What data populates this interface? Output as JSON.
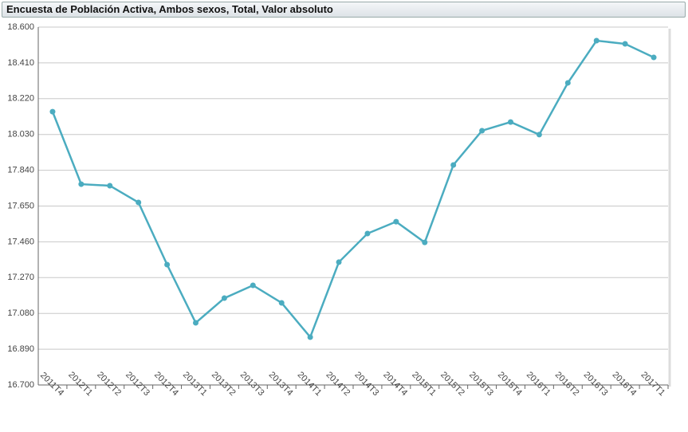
{
  "chart_data": {
    "type": "line",
    "title": "Encuesta de Población Activa, Ambos sexos, Total, Valor absoluto",
    "categories": [
      "2011T4",
      "2012T1",
      "2012T2",
      "2012T3",
      "2012T4",
      "2013T1",
      "2013T2",
      "2013T3",
      "2013T4",
      "2014T1",
      "2014T2",
      "2014T3",
      "2014T4",
      "2015T1",
      "2015T2",
      "2015T3",
      "2015T4",
      "2016T1",
      "2016T2",
      "2016T3",
      "2016T4",
      "2017T1"
    ],
    "series": [
      {
        "color": "#4bacc0",
        "values": [
          18151,
          17766,
          17758,
          17669,
          17339,
          17030,
          17161,
          17229,
          17136,
          16954,
          17352,
          17504,
          17567,
          17457,
          17868,
          18050,
          18096,
          18029,
          18304,
          18528,
          18511,
          18439
        ]
      }
    ],
    "ylim": [
      16700,
      18600
    ],
    "yticks": [
      {
        "value": 16700,
        "label": "16.700"
      },
      {
        "value": 16890,
        "label": "16.890"
      },
      {
        "value": 17080,
        "label": "17.080"
      },
      {
        "value": 17270,
        "label": "17.270"
      },
      {
        "value": 17460,
        "label": "17.460"
      },
      {
        "value": 17650,
        "label": "17.650"
      },
      {
        "value": 17840,
        "label": "17.840"
      },
      {
        "value": 18030,
        "label": "18.030"
      },
      {
        "value": 18220,
        "label": "18.220"
      },
      {
        "value": 18410,
        "label": "18.410"
      },
      {
        "value": 18600,
        "label": "18.600"
      }
    ],
    "grid": true
  }
}
